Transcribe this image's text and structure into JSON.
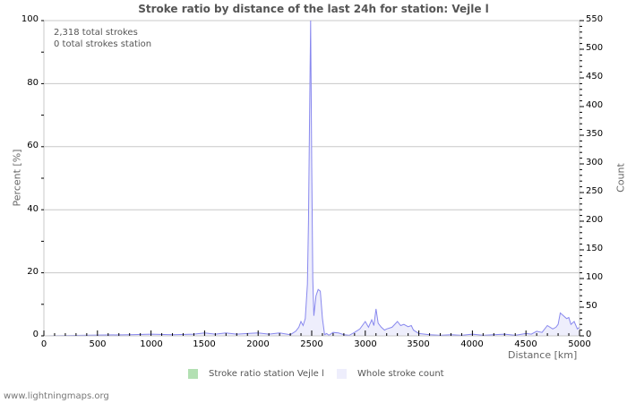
{
  "title": "Stroke ratio by distance of the last 24h for station: Vejle l",
  "info": {
    "total_strokes": "2,318 total strokes",
    "station_strokes": "0 total strokes station"
  },
  "axes": {
    "left_label": "Percent   [%]",
    "right_label": "Count",
    "x_label": "Distance   [km]",
    "left_ticks": [
      "100",
      "80",
      "60",
      "40",
      "20",
      "0"
    ],
    "right_ticks": [
      "550",
      "500",
      "450",
      "400",
      "350",
      "300",
      "250",
      "200",
      "150",
      "100",
      "50",
      "0"
    ],
    "x_ticks": [
      "0",
      "500",
      "1000",
      "1500",
      "2000",
      "2500",
      "3000",
      "3500",
      "4000",
      "4500",
      "5000"
    ]
  },
  "legend": {
    "station": "Stroke ratio station Vejle l",
    "whole": "Whole stroke count"
  },
  "footer": "www.lightningmaps.org",
  "colors": {
    "station": "#b3e0b3",
    "whole_fill": "#eeeefc",
    "whole_line": "#8888ee",
    "grid": "#c8c8c8"
  },
  "chart_data": {
    "type": "area",
    "title": "Stroke ratio by distance of the last 24h for station: Vejle l",
    "xlabel": "Distance [km]",
    "ylabel_left": "Percent [%]",
    "ylabel_right": "Count",
    "xlim": [
      0,
      5000
    ],
    "ylim_left": [
      0,
      100
    ],
    "ylim_right": [
      0,
      550
    ],
    "grid": true,
    "legend_position": "bottom",
    "annotations": [
      "2,318 total strokes",
      "0 total strokes station"
    ],
    "series": [
      {
        "name": "Stroke ratio station Vejle l",
        "axis": "left",
        "x": [],
        "values": []
      },
      {
        "name": "Whole stroke count",
        "axis": "right",
        "x": [
          0,
          800,
          1000,
          1200,
          1400,
          1500,
          1600,
          1700,
          1800,
          1900,
          2000,
          2100,
          2200,
          2300,
          2350,
          2380,
          2400,
          2420,
          2440,
          2460,
          2470,
          2480,
          2490,
          2500,
          2510,
          2520,
          2540,
          2560,
          2580,
          2600,
          2620,
          2640,
          2660,
          2700,
          2750,
          2800,
          2850,
          2900,
          2950,
          3000,
          3030,
          3060,
          3080,
          3100,
          3120,
          3150,
          3180,
          3200,
          3250,
          3300,
          3330,
          3360,
          3400,
          3430,
          3450,
          3500,
          3600,
          3700,
          3800,
          3900,
          4000,
          4100,
          4200,
          4300,
          4400,
          4500,
          4550,
          4600,
          4650,
          4700,
          4750,
          4780,
          4800,
          4820,
          4850,
          4880,
          4900,
          4920,
          4950,
          4980,
          5000
        ],
        "values": [
          0,
          2,
          3,
          2,
          3,
          5,
          3,
          5,
          3,
          4,
          5,
          3,
          5,
          2,
          8,
          15,
          25,
          18,
          30,
          90,
          200,
          380,
          550,
          300,
          100,
          35,
          70,
          81,
          78,
          30,
          2,
          4,
          1,
          6,
          5,
          2,
          1,
          6,
          12,
          25,
          15,
          28,
          18,
          47,
          22,
          15,
          10,
          12,
          15,
          25,
          18,
          20,
          16,
          18,
          10,
          4,
          2,
          1,
          2,
          1,
          3,
          1,
          2,
          3,
          1,
          4,
          3,
          8,
          6,
          18,
          12,
          15,
          20,
          40,
          35,
          30,
          32,
          20,
          25,
          12,
          15
        ]
      }
    ]
  }
}
